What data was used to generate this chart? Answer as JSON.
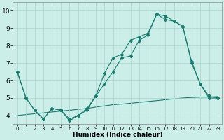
{
  "xlabel": "Humidex (Indice chaleur)",
  "bg_color": "#cceee8",
  "grid_color": "#aad4cc",
  "line_color": "#1a7a6e",
  "xlim": [
    -0.5,
    23.5
  ],
  "ylim": [
    3.5,
    10.5
  ],
  "xticks": [
    0,
    1,
    2,
    3,
    4,
    5,
    6,
    7,
    8,
    9,
    10,
    11,
    12,
    13,
    14,
    15,
    16,
    17,
    18,
    19,
    20,
    21,
    22,
    23
  ],
  "yticks": [
    4,
    5,
    6,
    7,
    8,
    9,
    10
  ],
  "s1_x": [
    0,
    1,
    2,
    3,
    4,
    5,
    6,
    7,
    8,
    9,
    10,
    11,
    12,
    13,
    14,
    15,
    16,
    17,
    18,
    19,
    20,
    21,
    22,
    23
  ],
  "s1_y": [
    6.5,
    5.0,
    4.3,
    3.8,
    4.4,
    4.3,
    3.7,
    4.0,
    4.4,
    5.1,
    5.8,
    6.5,
    7.3,
    7.4,
    8.3,
    8.6,
    9.8,
    9.5,
    9.4,
    9.1,
    7.0,
    5.8,
    5.0,
    5.0
  ],
  "s2_x": [
    0,
    1,
    2,
    3,
    4,
    5,
    6,
    7,
    8,
    9,
    10,
    11,
    12,
    13,
    14,
    15,
    16,
    17,
    18,
    19,
    20,
    21,
    22,
    23
  ],
  "s2_y": [
    6.5,
    5.0,
    4.3,
    3.8,
    4.4,
    4.3,
    3.8,
    4.0,
    4.3,
    5.1,
    6.4,
    7.3,
    7.5,
    8.3,
    8.5,
    8.7,
    9.8,
    9.7,
    9.4,
    9.1,
    7.1,
    5.8,
    5.1,
    5.0
  ],
  "s3_x": [
    0,
    1,
    2,
    3,
    4,
    5,
    6,
    7,
    8,
    9,
    10,
    11,
    12,
    13,
    14,
    15,
    16,
    17,
    18,
    19,
    20,
    21,
    22,
    23
  ],
  "s3_y": [
    4.0,
    4.05,
    4.1,
    4.15,
    4.2,
    4.25,
    4.3,
    4.35,
    4.4,
    4.48,
    4.55,
    4.62,
    4.65,
    4.7,
    4.75,
    4.8,
    4.85,
    4.9,
    4.95,
    5.0,
    5.03,
    5.05,
    5.05,
    5.08
  ],
  "xlabel_fontsize": 6.5,
  "xtick_fontsize": 5.0,
  "ytick_fontsize": 6.5,
  "lw": 0.8,
  "ms": 2.0
}
